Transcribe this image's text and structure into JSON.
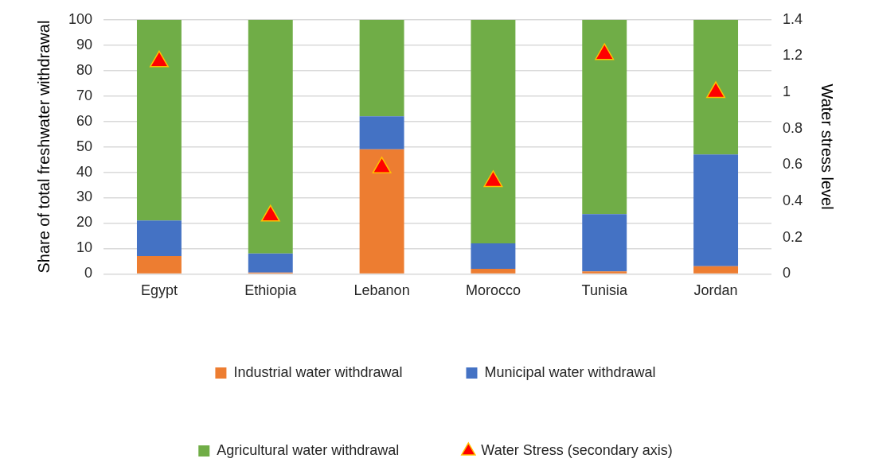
{
  "chart_data": {
    "type": "bar",
    "stacked": true,
    "ylabel": "Share of total freshwater withdrawal",
    "y2label": "Water stress level",
    "categories": [
      "Egypt",
      "Ethiopia",
      "Lebanon",
      "Morocco",
      "Tunisia",
      "Jordan"
    ],
    "series": [
      {
        "name": "Industrial water withdrawal",
        "color": "#ed7d31",
        "values": [
          7,
          0.5,
          49,
          2,
          1,
          3
        ]
      },
      {
        "name": "Municipal water withdrawal",
        "color": "#4472c4",
        "values": [
          14,
          7.5,
          13,
          10,
          22.5,
          44
        ]
      },
      {
        "name": "Agricultural water withdrawal",
        "color": "#70ad47",
        "values": [
          79,
          92,
          38,
          88,
          76.5,
          53
        ]
      },
      {
        "name": "Water Stress (secondary axis)",
        "type": "scatter",
        "axis": "y2",
        "marker": "triangle",
        "color": "#ff0000",
        "x": [
          "Egypt",
          "Ethiopia",
          "Lebanon",
          "Morocco",
          "Tunisia",
          "Jordan"
        ],
        "values": [
          1.17,
          0.32,
          0.585,
          0.51,
          1.21,
          1.0
        ]
      }
    ],
    "ylim": [
      0,
      100
    ],
    "yticks": [
      0,
      10,
      20,
      30,
      40,
      50,
      60,
      70,
      80,
      90,
      100
    ],
    "y2lim": [
      0,
      1.4
    ],
    "y2ticks": [
      0,
      0.2,
      0.4,
      0.6,
      0.8,
      1,
      1.2,
      1.4
    ],
    "grid": "y",
    "legend": "bottom"
  }
}
